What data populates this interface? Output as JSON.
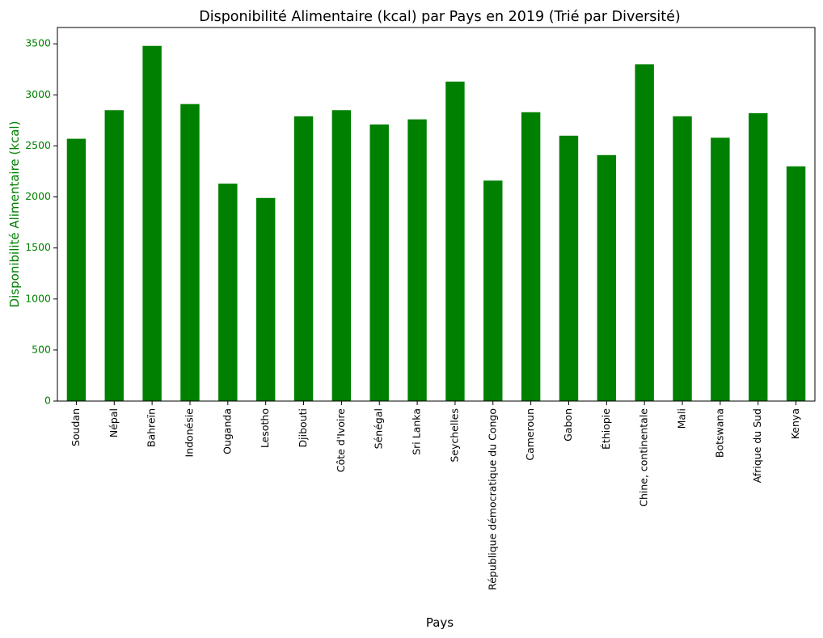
{
  "chart_data": {
    "type": "bar",
    "title": "Disponibilité Alimentaire (kcal) par Pays en 2019 (Trié par Diversité)",
    "xlabel": "Pays",
    "ylabel": "Disponibilité Alimentaire (kcal)",
    "ylim": [
      0,
      3660
    ],
    "yticks": [
      0,
      500,
      1000,
      1500,
      2000,
      2500,
      3000,
      3500
    ],
    "ytick_labels": [
      "0",
      "500",
      "1000",
      "1500",
      "2000",
      "2500",
      "3000",
      "3500"
    ],
    "grid": false,
    "legend": null,
    "colors": {
      "bar": "#008000",
      "ylabel": "#008000",
      "ytick": "#008000",
      "text": "#000000"
    },
    "categories": [
      "Soudan",
      "Népal",
      "Bahreïn",
      "Indonésie",
      "Ouganda",
      "Lesotho",
      "Djibouti",
      "Côte d'Ivoire",
      "Sénégal",
      "Sri Lanka",
      "Seychelles",
      "République démocratique du Congo",
      "Cameroun",
      "Gabon",
      "Éthiopie",
      "Chine, continentale",
      "Mali",
      "Botswana",
      "Afrique du Sud",
      "Kenya"
    ],
    "values": [
      2570,
      2850,
      3480,
      2910,
      2130,
      1990,
      2790,
      2850,
      2710,
      2760,
      3130,
      2160,
      2830,
      2600,
      2410,
      3300,
      2790,
      2580,
      2820,
      2300
    ]
  }
}
